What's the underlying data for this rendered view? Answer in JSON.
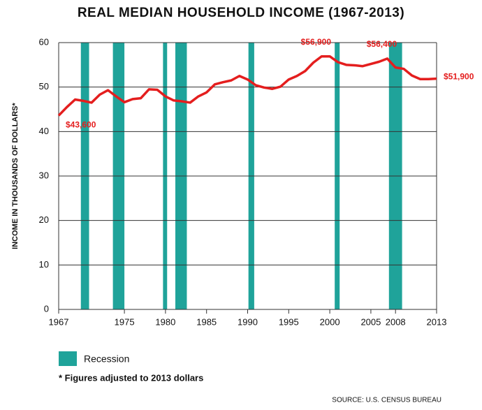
{
  "chart_data": {
    "type": "line",
    "title": "REAL MEDIAN HOUSEHOLD INCOME (1967-2013)",
    "y_label": "INCOME IN THOUSANDS OF DOLLARS*",
    "x": [
      1967,
      1968,
      1969,
      1970,
      1971,
      1972,
      1973,
      1974,
      1975,
      1976,
      1977,
      1978,
      1979,
      1980,
      1981,
      1982,
      1983,
      1984,
      1985,
      1986,
      1987,
      1988,
      1989,
      1990,
      1991,
      1992,
      1993,
      1994,
      1995,
      1996,
      1997,
      1998,
      1999,
      2000,
      2001,
      2002,
      2003,
      2004,
      2005,
      2006,
      2007,
      2008,
      2009,
      2010,
      2011,
      2012,
      2013
    ],
    "values": [
      43.6,
      45.5,
      47.2,
      46.9,
      46.5,
      48.3,
      49.3,
      47.9,
      46.6,
      47.3,
      47.5,
      49.5,
      49.4,
      47.9,
      47.0,
      46.8,
      46.5,
      47.9,
      48.8,
      50.6,
      51.1,
      51.5,
      52.5,
      51.7,
      50.4,
      49.9,
      49.6,
      50.1,
      51.7,
      52.5,
      53.6,
      55.5,
      56.9,
      56.9,
      55.6,
      55.0,
      54.9,
      54.7,
      55.2,
      55.7,
      56.4,
      54.4,
      54.1,
      52.6,
      51.8,
      51.8,
      51.9
    ],
    "value_labels": [
      "$43,600",
      null,
      null,
      null,
      null,
      null,
      null,
      null,
      null,
      null,
      null,
      null,
      null,
      null,
      null,
      null,
      null,
      null,
      null,
      null,
      null,
      null,
      null,
      null,
      null,
      null,
      null,
      null,
      null,
      null,
      null,
      null,
      "$56,900",
      null,
      null,
      null,
      null,
      null,
      null,
      null,
      "$56,400",
      null,
      null,
      null,
      null,
      null,
      "$51,900"
    ],
    "color": "#e41e1e",
    "recessions": {
      "name": "Recession",
      "color": "#1fa39a",
      "ranges": [
        [
          1969.7,
          1970.7
        ],
        [
          1973.6,
          1975.0
        ],
        [
          1979.7,
          1980.2
        ],
        [
          1981.2,
          1982.6
        ],
        [
          1990.1,
          1990.8
        ],
        [
          2000.6,
          2001.2
        ],
        [
          2007.2,
          2008.8
        ]
      ]
    },
    "xlim": [
      1967,
      2013
    ],
    "xticks": [
      1967,
      1975,
      1980,
      1985,
      1990,
      1995,
      2000,
      2005,
      2008,
      2013
    ],
    "ylim": [
      0,
      60
    ],
    "yticks": [
      0,
      10,
      20,
      30,
      40,
      50,
      60
    ],
    "grid": true,
    "note": "* Figures adjusted to 2013 dollars",
    "source": "SOURCE:  U.S. CENSUS BUREAU"
  }
}
